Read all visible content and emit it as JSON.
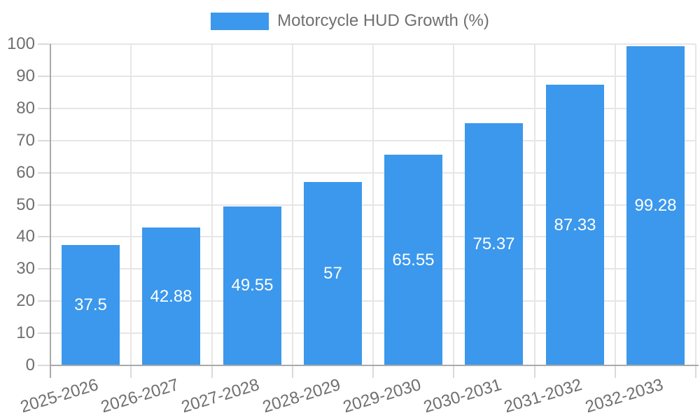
{
  "legend": {
    "label": "Motorcycle HUD Growth (%)"
  },
  "colors": {
    "bar": "#3b98ec",
    "bar_label_text": "#ffffff",
    "grid": "#e6e6e6",
    "axis": "#a9a9a9",
    "tick": "#dadada",
    "text": "#6f6f6f",
    "background": "#ffffff"
  },
  "chart_data": {
    "type": "bar",
    "title": "Motorcycle HUD Growth (%)",
    "legend_position": "top",
    "grid": true,
    "categories": [
      "2025-2026",
      "2026-2027",
      "2027-2028",
      "2028-2029",
      "2029-2030",
      "2030-2031",
      "2031-2032",
      "2032-2033"
    ],
    "values": [
      37.5,
      42.88,
      49.55,
      57,
      65.55,
      75.37,
      87.33,
      99.28
    ],
    "value_labels": [
      "37.5",
      "42.88",
      "49.55",
      "57",
      "65.55",
      "75.37",
      "87.33",
      "99.28"
    ],
    "series_name": "Motorcycle HUD Growth (%)",
    "xlabel": "",
    "ylabel": "",
    "ylim": [
      0,
      100
    ],
    "ytick_step": 10,
    "yticks": [
      0,
      10,
      20,
      30,
      40,
      50,
      60,
      70,
      80,
      90,
      100
    ]
  }
}
